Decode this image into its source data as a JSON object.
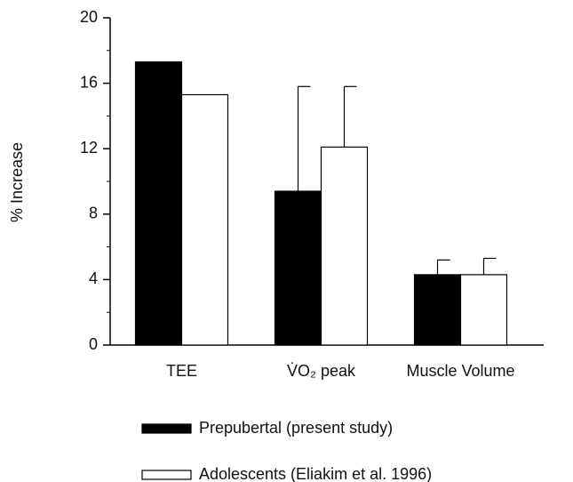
{
  "chart_data": {
    "type": "bar",
    "ylabel": "% Increase",
    "categories": [
      "TEE",
      "V̇O₂ peak",
      "Muscle Volume"
    ],
    "series": [
      {
        "name": "Prepubertal (present study)",
        "color": "#000000",
        "values": [
          17.3,
          9.4,
          4.3
        ],
        "errors": [
          null,
          6.4,
          0.9
        ]
      },
      {
        "name": "Adolescents (Eliakim et al. 1996)",
        "color": "#ffffff",
        "values": [
          15.3,
          12.1,
          4.3
        ],
        "errors": [
          null,
          3.7,
          1.0
        ]
      }
    ],
    "ylim": [
      0,
      20
    ],
    "yticks": [
      0,
      4,
      8,
      12,
      16,
      20
    ],
    "yminorticks": [
      2,
      6,
      10,
      14,
      18
    ],
    "grid": false,
    "legend": "bottom"
  }
}
